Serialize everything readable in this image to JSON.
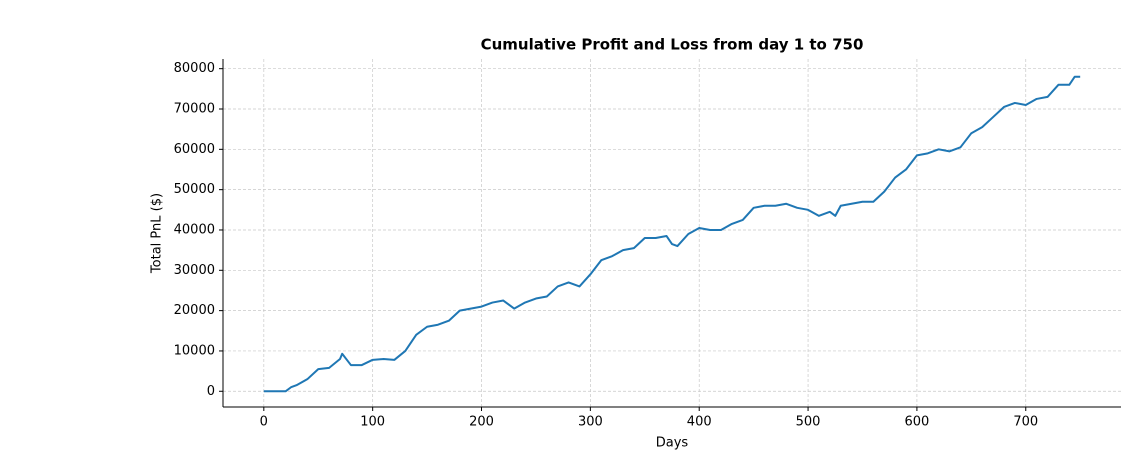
{
  "chart_data": {
    "type": "line",
    "title": "Cumulative Profit and Loss from day 1 to 750",
    "x_label": "Days",
    "y_label": "Total PnL ($)",
    "x": [
      0,
      10,
      20,
      25,
      30,
      40,
      50,
      60,
      70,
      72,
      80,
      90,
      100,
      110,
      120,
      130,
      140,
      150,
      160,
      170,
      180,
      190,
      200,
      210,
      220,
      230,
      240,
      250,
      260,
      270,
      280,
      290,
      300,
      310,
      320,
      330,
      340,
      350,
      360,
      370,
      375,
      380,
      390,
      400,
      410,
      420,
      430,
      440,
      450,
      460,
      470,
      480,
      490,
      500,
      510,
      520,
      525,
      530,
      540,
      550,
      560,
      570,
      580,
      590,
      600,
      610,
      620,
      630,
      640,
      650,
      660,
      670,
      680,
      690,
      700,
      710,
      720,
      730,
      740,
      745,
      750
    ],
    "series": [
      {
        "name": "Total PnL",
        "color": "#1f77b4",
        "values": [
          0,
          0,
          0,
          1000,
          1500,
          3000,
          5500,
          5800,
          8000,
          9300,
          6500,
          6500,
          7800,
          8000,
          7800,
          10000,
          14000,
          16000,
          16500,
          17500,
          20000,
          20500,
          21000,
          22000,
          22500,
          20500,
          22000,
          23000,
          23500,
          26000,
          27000,
          26000,
          29000,
          32500,
          33500,
          35000,
          35500,
          38000,
          38000,
          38500,
          36500,
          36000,
          39000,
          40500,
          40000,
          40000,
          41500,
          42500,
          45500,
          46000,
          46000,
          46500,
          45500,
          45000,
          43500,
          44500,
          43500,
          46000,
          46500,
          47000,
          47000,
          49500,
          53000,
          55000,
          58500,
          59000,
          60000,
          59500,
          60500,
          64000,
          65500,
          68000,
          70500,
          71500,
          71000,
          72500,
          73000,
          76000,
          76000,
          78000,
          78000
        ]
      }
    ],
    "xlim": [
      -37.5,
      787.5
    ],
    "xticks": [
      0,
      100,
      200,
      300,
      400,
      500,
      600,
      700
    ],
    "ylim": [
      -3900,
      82400
    ],
    "yticks": [
      0,
      10000,
      20000,
      30000,
      40000,
      50000,
      60000,
      70000,
      80000
    ],
    "grid": true
  }
}
